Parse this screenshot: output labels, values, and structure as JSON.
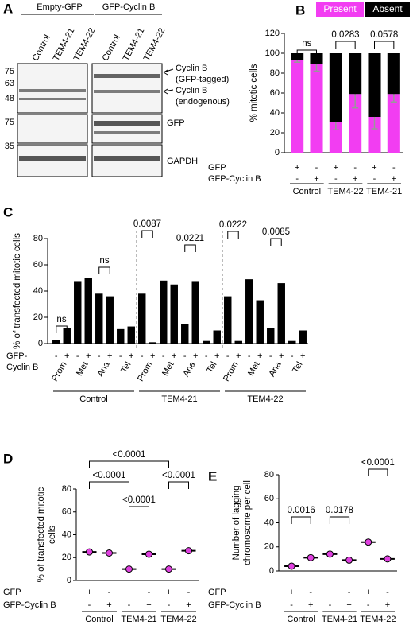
{
  "blot": {
    "panel": "A",
    "groups": [
      "Empty-GFP",
      "GFP-Cyclin B"
    ],
    "lanes": [
      "Control",
      "TEM4-21",
      "TEM4-22",
      "Control",
      "TEM4-21",
      "TEM4-22"
    ],
    "markers": [
      "75",
      "63",
      "48",
      "75",
      "35"
    ],
    "band_labels": [
      "Cyclin B",
      "(GFP-tagged)",
      "Cyclin B",
      "(endogenous)",
      "GFP",
      "GAPDH"
    ]
  },
  "chart_data": [
    {
      "type": "stacked_bar",
      "panel": "B",
      "ylabel": "% mitotic cells",
      "ylim": [
        0,
        120
      ],
      "yticks": [
        0,
        20,
        40,
        60,
        80,
        100,
        120
      ],
      "series": [
        {
          "name": "Present",
          "color": "#f23df2",
          "values": [
            93,
            89,
            31,
            59,
            36,
            59
          ],
          "errors": [
            2,
            7,
            8,
            14,
            12,
            8
          ]
        },
        {
          "name": "Absent",
          "color": "#000000",
          "values": [
            7,
            11,
            69,
            41,
            64,
            41
          ]
        }
      ],
      "rows": [
        {
          "label": "GFP",
          "signs": [
            "+",
            "-",
            "+",
            "-",
            "+",
            "-"
          ]
        },
        {
          "label": "GFP-Cyclin B",
          "signs": [
            "-",
            "+",
            "-",
            "+",
            "-",
            "+"
          ]
        }
      ],
      "groups": [
        "Control",
        "TEM4-22",
        "TEM4-21"
      ],
      "annotations": [
        "ns",
        "0.0283",
        "0.0578"
      ]
    },
    {
      "type": "bar",
      "panel": "C",
      "ylabel": "% of transfected mitotic cells",
      "color": "#000000",
      "ylim": [
        0,
        80
      ],
      "yticks": [
        0,
        20,
        40,
        60,
        80
      ],
      "values": [
        3,
        12,
        47,
        50,
        38,
        36,
        11,
        13,
        38,
        1,
        48,
        45,
        15,
        47,
        2,
        10,
        36,
        2,
        49,
        33,
        12,
        46,
        2,
        10
      ],
      "row_labels": [
        "GFP-",
        "Cyclin B"
      ],
      "signs": [
        "-",
        "+",
        "-",
        "+",
        "-",
        "+",
        "-",
        "+",
        "-",
        "+",
        "-",
        "+",
        "-",
        "+",
        "-",
        "+",
        "-",
        "+",
        "-",
        "+",
        "-",
        "+",
        "-",
        "+"
      ],
      "phases": [
        "Prom",
        "Met",
        "Ana",
        "Tel",
        "Prom",
        "Met",
        "Ana",
        "Tel",
        "Prom",
        "Met",
        "Ana",
        "Tel"
      ],
      "groups": [
        "Control",
        "TEM4-21",
        "TEM4-22"
      ],
      "annotations": [
        "ns",
        "ns",
        "0.0087",
        "0.0221",
        "0.0222",
        "0.0085"
      ]
    },
    {
      "type": "dot",
      "panel": "D",
      "ylabel": [
        "% of transfected mitotic",
        "cells"
      ],
      "color": "#e040e0",
      "ylim": [
        0,
        80
      ],
      "yticks": [
        0,
        20,
        40,
        60,
        80
      ],
      "values": [
        25,
        24,
        10,
        23,
        10,
        26
      ],
      "rows": [
        {
          "label": "GFP",
          "signs": [
            "+",
            "-",
            "+",
            "-",
            "+",
            "-"
          ]
        },
        {
          "label": "GFP-Cyclin B",
          "signs": [
            "-",
            "+",
            "-",
            "+",
            "-",
            "+"
          ]
        }
      ],
      "groups": [
        "Control",
        "TEM4-21",
        "TEM4-22"
      ],
      "annotations": [
        "<0.0001",
        "<0.0001",
        "<0.0001",
        "<0.0001"
      ]
    },
    {
      "type": "dot",
      "panel": "E",
      "ylabel": [
        "Number of lagging",
        "chromosome per cell"
      ],
      "color": "#e040e0",
      "ylim": [
        0,
        80
      ],
      "yticks": [
        0,
        20,
        40,
        60,
        80
      ],
      "values": [
        4,
        11,
        14,
        9,
        24,
        10
      ],
      "rows": [
        {
          "label": "GFP",
          "signs": [
            "+",
            "-",
            "+",
            "-",
            "+",
            "-"
          ]
        },
        {
          "label": "GFP-Cyclin B",
          "signs": [
            "-",
            "+",
            "-",
            "+",
            "-",
            "+"
          ]
        }
      ],
      "groups": [
        "Control",
        "TEM4-21",
        "TEM4-22"
      ],
      "annotations": [
        "0.0016",
        "0.0178",
        "<0.0001"
      ]
    }
  ]
}
